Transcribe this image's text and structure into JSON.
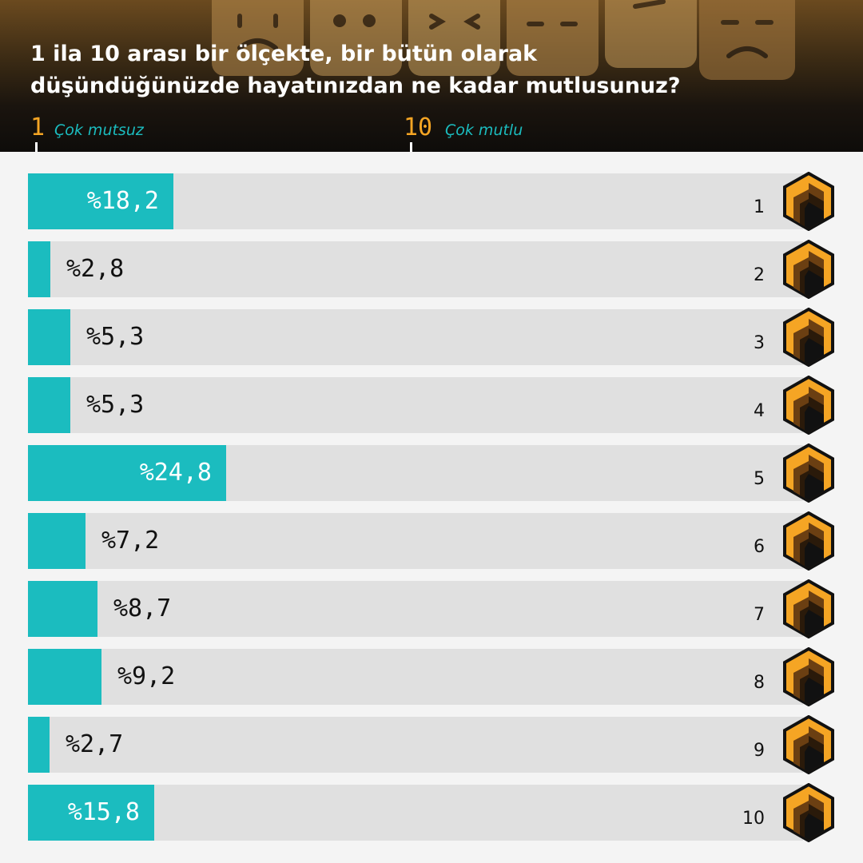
{
  "header": {
    "title": "1 ila 10 arası bir ölçekte, bir bütün olarak düşündüğünüzde hayatınızdan ne kadar mutlusunuz?",
    "scale_low_num": "1",
    "scale_low_label": "Çok mutsuz",
    "scale_high_num": "10",
    "scale_high_label": "Çok mutlu"
  },
  "colors": {
    "bar": "#1bbcbf",
    "track": "#e0e0e0",
    "accent": "#f5a524"
  },
  "chart_data": {
    "type": "bar",
    "orientation": "horizontal",
    "categories": [
      "1",
      "2",
      "3",
      "4",
      "5",
      "6",
      "7",
      "8",
      "9",
      "10"
    ],
    "values": [
      18.2,
      2.8,
      5.3,
      5.3,
      24.8,
      7.2,
      8.7,
      9.2,
      2.7,
      15.8
    ],
    "labels": [
      "%18,2",
      "%2,8",
      "%5,3",
      "%5,3",
      "%24,8",
      "%7,2",
      "%8,7",
      "%9,2",
      "%2,7",
      "%15,8"
    ],
    "title": "1 ila 10 arası bir ölçekte, bir bütün olarak düşündüğünüzde hayatınızdan ne kadar mutlusunuz?",
    "xlim": [
      0,
      100
    ],
    "grid": false
  }
}
